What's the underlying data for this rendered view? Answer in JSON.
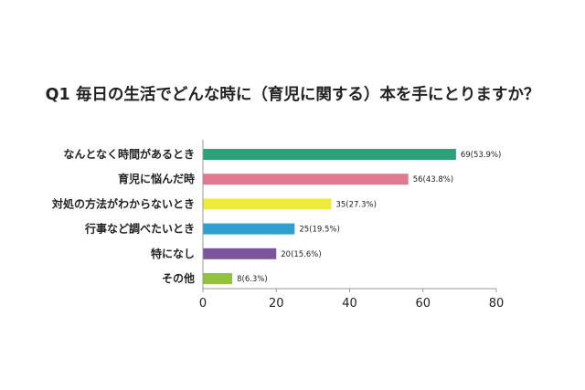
{
  "chart_data": {
    "type": "bar",
    "orientation": "horizontal",
    "title": "Q1 毎日の生活でどんな時に（育児に関する）本を手にとりますか？",
    "categories": [
      "なんとなく時間があるとき",
      "育児に悩んだ時",
      "対処の方法がわからないとき",
      "行事など調べたいとき",
      "特になし",
      "その他"
    ],
    "values": [
      69,
      56,
      35,
      25,
      20,
      8
    ],
    "data_labels": [
      "69(53.9%)",
      "56(43.8%)",
      "35(27.3%)",
      "25(19.5%)",
      "20(15.6%)",
      "8(6.3%)"
    ],
    "colors": [
      "#2aa37a",
      "#e07b8e",
      "#eeea3a",
      "#2e9fcf",
      "#7a559c",
      "#93c23c"
    ],
    "xlim": [
      0,
      80
    ],
    "xticks": [
      0,
      20,
      40,
      60,
      80
    ],
    "grid": false,
    "legend": "none"
  }
}
